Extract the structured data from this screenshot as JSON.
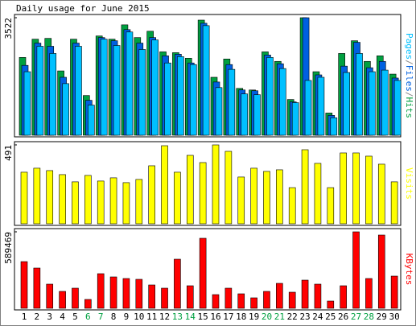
{
  "title": "Daily usage for June 2015",
  "chart_data": [
    {
      "type": "bar",
      "ylim": [
        0,
        3522
      ],
      "yticks": [
        3522
      ],
      "series": [
        {
          "name": "Pages",
          "color": "#00c0ff",
          "values": [
            1904,
            2666,
            2451,
            1547,
            2666,
            904,
            2880,
            2689,
            3094,
            2570,
            2856,
            2166,
            2356,
            2118,
            3284,
            1428,
            1975,
            1238,
            1214,
            2332,
            1999,
            976,
            1642,
            1737,
            524,
            1880,
            2451,
            1904,
            1952,
            1642
          ]
        },
        {
          "name": "Files",
          "color": "#0060e0",
          "values": [
            2094,
            2761,
            2666,
            1737,
            2761,
            1047,
            2927,
            2832,
            3165,
            2761,
            2927,
            2380,
            2428,
            2166,
            3356,
            1595,
            2118,
            1357,
            1333,
            2404,
            2142,
            1000,
            3522,
            1809,
            595,
            2071,
            2785,
            2023,
            2213,
            1714
          ]
        },
        {
          "name": "Hits",
          "color": "#00a040",
          "values": [
            2332,
            2879,
            2903,
            1928,
            2879,
            1190,
            2975,
            2879,
            3308,
            2927,
            3117,
            2499,
            2475,
            2308,
            3450,
            1737,
            2285,
            1404,
            1356,
            2499,
            2213,
            1071,
            3522,
            1904,
            666,
            2451,
            2832,
            2213,
            2380,
            1832
          ]
        }
      ]
    },
    {
      "type": "bar",
      "ylim": [
        0,
        491
      ],
      "yticks": [
        491
      ],
      "series": [
        {
          "name": "Visits",
          "color": "#ffff00",
          "values": [
            321,
            346,
            331,
            306,
            261,
            301,
            266,
            286,
            256,
            276,
            361,
            486,
            321,
            426,
            381,
            491,
            451,
            291,
            346,
            326,
            336,
            225,
            461,
            376,
            225,
            441,
            441,
            421,
            371,
            261
          ]
        }
      ]
    },
    {
      "type": "bar",
      "ylim": [
        0,
        589469
      ],
      "yticks": [
        589469
      ],
      "categories": [
        "1",
        "2",
        "3",
        "4",
        "5",
        "6",
        "7",
        "8",
        "9",
        "10",
        "11",
        "12",
        "13",
        "14",
        "15",
        "16",
        "17",
        "18",
        "19",
        "20",
        "21",
        "22",
        "23",
        "24",
        "25",
        "26",
        "27",
        "28",
        "29",
        "30"
      ],
      "category_colors": [
        "#000000",
        "#000000",
        "#000000",
        "#000000",
        "#000000",
        "#00a040",
        "#00a040",
        "#000000",
        "#000000",
        "#000000",
        "#000000",
        "#000000",
        "#00a040",
        "#00a040",
        "#000000",
        "#000000",
        "#000000",
        "#000000",
        "#000000",
        "#00a040",
        "#00a040",
        "#000000",
        "#000000",
        "#000000",
        "#000000",
        "#000000",
        "#00a040",
        "#00a040",
        "#000000",
        "#000000"
      ],
      "series": [
        {
          "name": "KBytes",
          "color": "#ff0000",
          "values": [
            359890,
            310250,
            186150,
            130305,
            155125,
            68255,
            266815,
            241995,
            229585,
            223380,
            179945,
            155125,
            378505,
            173740,
            539835,
            105485,
            155125,
            111690,
            80665,
            130305,
            192355,
            124100,
            217175,
            186150,
            55845,
            173740,
            589469,
            229585,
            564655,
            248200
          ]
        }
      ]
    }
  ]
}
